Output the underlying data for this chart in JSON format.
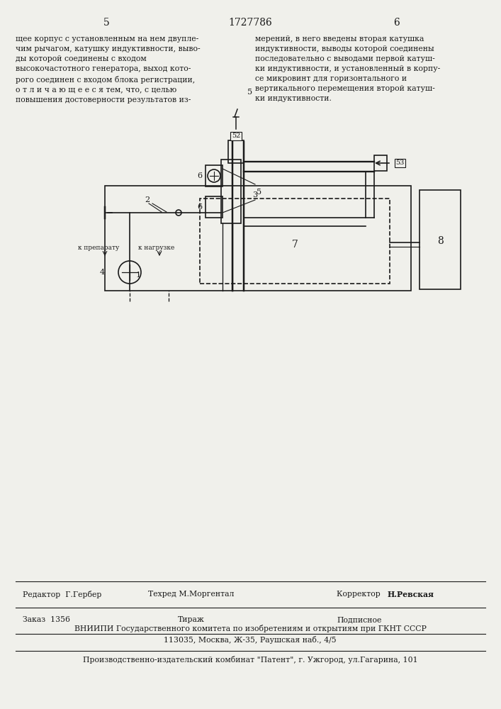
{
  "page_number_left": "5",
  "page_number_center": "1727786",
  "page_number_right": "6",
  "bg_color": "#f0f0eb",
  "text_color": "#1a1a1a",
  "text_left": "щее корпус с установленным на нем двупле-\nчим рычагом, катушку индуктивности, выво-\nды которой соединены с входом\nвысокочастотного генератора, выход кото-\nрого соединен с входом блока регистрации,\nо т л и ч а ю щ е е с я тем, что, с целью\nповышения достоверности результатов из-",
  "text_right": "мерений, в него введены вторая катушка\nиндуктивности, выводы которой соединены\nпоследовательно с выводами первой катуш-\nки индуктивности, и установленный в корпу-\nсе микровинт для горизонтального и\nвертикального перемещения второй катуш-\nки индуктивности.",
  "footer_editor": "Редактор  Г.Гербер",
  "footer_techred": "Техред М.Моргентал",
  "footer_corrector": "Корректор  Н.Ревская",
  "footer_order": "Заказ  1356",
  "footer_tirazh": "Тираж",
  "footer_podpisnoe": "Подписное",
  "footer_vniiipi": "ВНИИПИ Государственного комитета по изобретениям и открытиям при ГКНТ СССР",
  "footer_address": "113035, Москва, Ж-35, Раушская наб., 4/5",
  "footer_factory": "Производственно-издательский комбинат \"Патент\", г. Ужгород, ул.Гагарина, 101",
  "label_k_preparatu": "к препарату",
  "label_k_nagruzke": "к нагрузке",
  "numbers": {
    "n1": "1",
    "n2": "2",
    "n3": "3",
    "n4": "4",
    "n5": "5",
    "n6a": "6",
    "n6b": "6",
    "n7": "7",
    "n8": "8",
    "n52": "52",
    "n53": "53"
  }
}
